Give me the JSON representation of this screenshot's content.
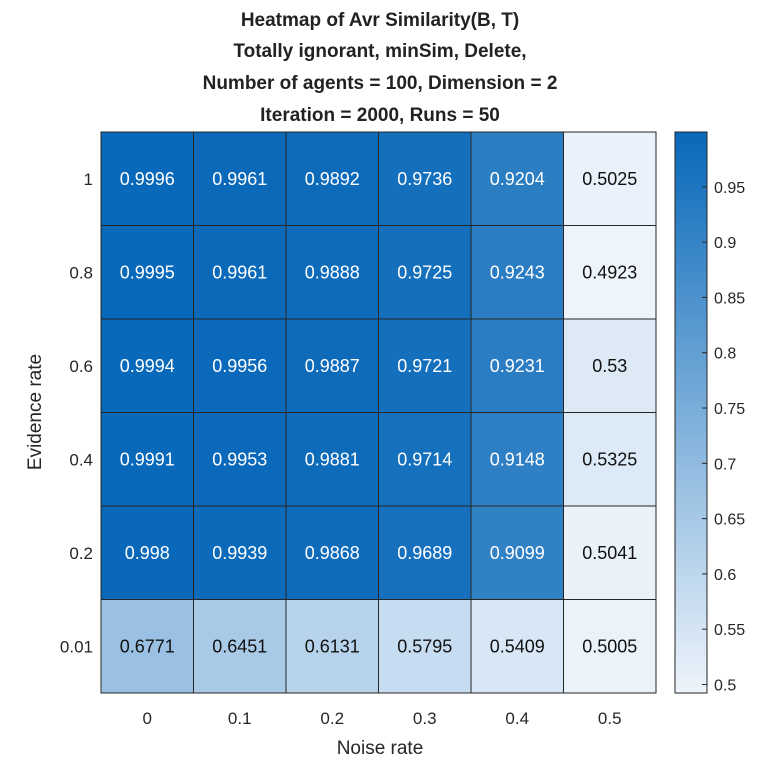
{
  "chart_data": {
    "type": "heatmap",
    "title_lines": [
      "Heatmap of Avr Similarity(B, T)",
      "Totally ignorant, minSim, Delete,",
      "Number of agents = 100, Dimension = 2",
      "Iteration = 2000, Runs = 50"
    ],
    "xlabel": "Noise rate",
    "ylabel": "Evidence rate",
    "x_categories": [
      "0",
      "0.1",
      "0.2",
      "0.3",
      "0.4",
      "0.5"
    ],
    "y_categories": [
      "1",
      "0.8",
      "0.6",
      "0.4",
      "0.2",
      "0.01"
    ],
    "values": [
      [
        0.9996,
        0.9961,
        0.9892,
        0.9736,
        0.9204,
        0.5025
      ],
      [
        0.9995,
        0.9961,
        0.9888,
        0.9725,
        0.9243,
        0.4923
      ],
      [
        0.9994,
        0.9956,
        0.9887,
        0.9721,
        0.9231,
        0.53
      ],
      [
        0.9991,
        0.9953,
        0.9881,
        0.9714,
        0.9148,
        0.5325
      ],
      [
        0.998,
        0.9939,
        0.9868,
        0.9689,
        0.9099,
        0.5041
      ],
      [
        0.6771,
        0.6451,
        0.6131,
        0.5795,
        0.5409,
        0.5005
      ]
    ],
    "labels": [
      [
        "0.9996",
        "0.9961",
        "0.9892",
        "0.9736",
        "0.9204",
        "0.5025"
      ],
      [
        "0.9995",
        "0.9961",
        "0.9888",
        "0.9725",
        "0.9243",
        "0.4923"
      ],
      [
        "0.9994",
        "0.9956",
        "0.9887",
        "0.9721",
        "0.9231",
        "0.53"
      ],
      [
        "0.9991",
        "0.9953",
        "0.9881",
        "0.9714",
        "0.9148",
        "0.5325"
      ],
      [
        "0.998",
        "0.9939",
        "0.9868",
        "0.9689",
        "0.9099",
        "0.5041"
      ],
      [
        "0.6771",
        "0.6451",
        "0.6131",
        "0.5795",
        "0.5409",
        "0.5005"
      ]
    ],
    "colorbar": {
      "min": 0.4923,
      "max": 0.9996,
      "ticks": [
        "0.5",
        "0.55",
        "0.6",
        "0.65",
        "0.7",
        "0.75",
        "0.8",
        "0.85",
        "0.9",
        "0.95"
      ],
      "low_color": "#eef4fb",
      "high_color": "#0868b9"
    }
  }
}
